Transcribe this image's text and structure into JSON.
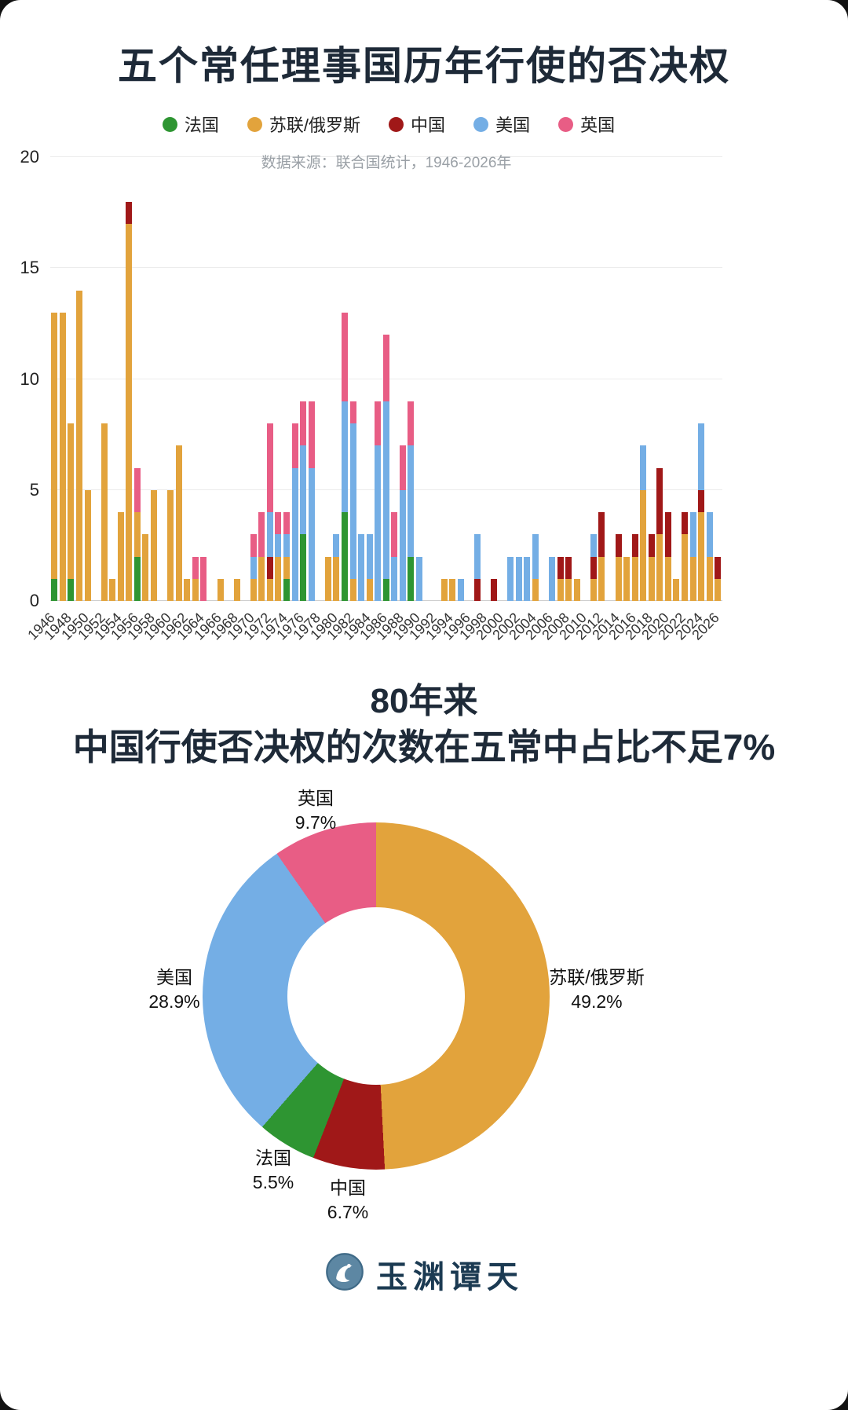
{
  "header": {
    "title": "五个常任理事国历年行使的否决权",
    "source_note": "数据来源：联合国统计，1946-2026年"
  },
  "section2": {
    "line1": "80年来",
    "line2": "中国行使否决权的次数在五常中占比不足7%"
  },
  "logo": {
    "text": "玉渊谭天"
  },
  "colors": {
    "france": "#2E9532",
    "ussr_russia": "#E2A33C",
    "china": "#A01818",
    "usa": "#74AEE5",
    "uk": "#E85D85",
    "title": "#1E2A38"
  },
  "chart_data": [
    {
      "type": "bar",
      "stacked": true,
      "title": "五个常任理事国历年行使的否决权",
      "source_note": "数据来源：联合国统计，1946-2026年",
      "x_start": 1946,
      "x_end": 2026,
      "ylim": [
        0,
        20
      ],
      "y_ticks": [
        0,
        5,
        10,
        15,
        20
      ],
      "x_ticks": [
        "1946",
        "1948",
        "1950",
        "1952",
        "1954",
        "1956",
        "1958",
        "1960",
        "1962",
        "1964",
        "1966",
        "1968",
        "1970",
        "1972",
        "1974",
        "1976",
        "1978",
        "1980",
        "1982",
        "1984",
        "1986",
        "1988",
        "1990",
        "1992",
        "1994",
        "1996",
        "1998",
        "2000",
        "2002",
        "2004",
        "2006",
        "2008",
        "2010",
        "2012",
        "2014",
        "2016",
        "2018",
        "2020",
        "2022",
        "2024",
        "2026"
      ],
      "legend_position": "top",
      "grid": true,
      "series": [
        {
          "name": "法国",
          "color": "#2E9532",
          "values": [
            1,
            0,
            1,
            0,
            0,
            0,
            0,
            0,
            0,
            0,
            2,
            0,
            0,
            0,
            0,
            0,
            0,
            0,
            0,
            0,
            0,
            0,
            0,
            0,
            0,
            0,
            0,
            0,
            1,
            0,
            3,
            0,
            0,
            0,
            0,
            4,
            0,
            0,
            0,
            0,
            1,
            0,
            0,
            2,
            0,
            0,
            0,
            0,
            0,
            0,
            0,
            0,
            0,
            0,
            0,
            0,
            0,
            0,
            0,
            0,
            0,
            0,
            0,
            0,
            0,
            0,
            0,
            0,
            0,
            0,
            0,
            0,
            0,
            0,
            0,
            0,
            0,
            0,
            0,
            0,
            0
          ]
        },
        {
          "name": "苏联/俄罗斯",
          "color": "#E2A33C",
          "values": [
            12,
            13,
            7,
            14,
            5,
            0,
            8,
            1,
            4,
            17,
            2,
            3,
            5,
            0,
            5,
            7,
            1,
            1,
            0,
            0,
            1,
            0,
            1,
            0,
            1,
            2,
            1,
            2,
            1,
            0,
            0,
            0,
            0,
            2,
            2,
            0,
            1,
            0,
            1,
            0,
            0,
            0,
            0,
            0,
            0,
            0,
            0,
            1,
            1,
            0,
            0,
            0,
            0,
            0,
            0,
            0,
            0,
            0,
            1,
            0,
            0,
            1,
            1,
            1,
            0,
            1,
            2,
            0,
            2,
            2,
            2,
            5,
            2,
            3,
            2,
            1,
            3,
            2,
            4,
            2,
            1
          ]
        },
        {
          "name": "中国",
          "color": "#A01818",
          "values": [
            0,
            0,
            0,
            0,
            0,
            0,
            0,
            0,
            0,
            1,
            0,
            0,
            0,
            0,
            0,
            0,
            0,
            0,
            0,
            0,
            0,
            0,
            0,
            0,
            0,
            0,
            1,
            0,
            0,
            0,
            0,
            0,
            0,
            0,
            0,
            0,
            0,
            0,
            0,
            0,
            0,
            0,
            0,
            0,
            0,
            0,
            0,
            0,
            0,
            0,
            0,
            1,
            0,
            1,
            0,
            0,
            0,
            0,
            0,
            0,
            0,
            1,
            1,
            0,
            0,
            1,
            2,
            0,
            1,
            0,
            1,
            0,
            1,
            3,
            2,
            0,
            1,
            0,
            1,
            0,
            1
          ]
        },
        {
          "name": "美国",
          "color": "#74AEE5",
          "values": [
            0,
            0,
            0,
            0,
            0,
            0,
            0,
            0,
            0,
            0,
            0,
            0,
            0,
            0,
            0,
            0,
            0,
            0,
            0,
            0,
            0,
            0,
            0,
            0,
            1,
            0,
            2,
            1,
            1,
            6,
            4,
            6,
            0,
            0,
            1,
            5,
            7,
            3,
            2,
            7,
            8,
            2,
            5,
            5,
            2,
            0,
            0,
            0,
            0,
            1,
            0,
            2,
            0,
            0,
            0,
            2,
            2,
            2,
            2,
            0,
            2,
            0,
            0,
            0,
            0,
            1,
            0,
            0,
            0,
            0,
            0,
            2,
            0,
            0,
            0,
            0,
            0,
            2,
            3,
            2,
            0
          ]
        },
        {
          "name": "英国",
          "color": "#E85D85",
          "values": [
            0,
            0,
            0,
            0,
            0,
            0,
            0,
            0,
            0,
            0,
            2,
            0,
            0,
            0,
            0,
            0,
            0,
            1,
            2,
            0,
            0,
            0,
            0,
            0,
            1,
            2,
            4,
            1,
            1,
            2,
            2,
            3,
            0,
            0,
            0,
            4,
            1,
            0,
            0,
            2,
            3,
            2,
            2,
            2,
            0,
            0,
            0,
            0,
            0,
            0,
            0,
            0,
            0,
            0,
            0,
            0,
            0,
            0,
            0,
            0,
            0,
            0,
            0,
            0,
            0,
            0,
            0,
            0,
            0,
            0,
            0,
            0,
            0,
            0,
            0,
            0,
            0,
            0,
            0,
            0,
            0
          ]
        }
      ]
    },
    {
      "type": "pie",
      "donut": true,
      "title": "80年来 中国行使否决权的次数在五常中占比不足7%",
      "slices": [
        {
          "label": "苏联/俄罗斯",
          "value": 49.2,
          "value_label": "49.2%",
          "color": "#E2A33C"
        },
        {
          "label": "中国",
          "value": 6.7,
          "value_label": "6.7%",
          "color": "#A01818"
        },
        {
          "label": "法国",
          "value": 5.5,
          "value_label": "5.5%",
          "color": "#2E9532"
        },
        {
          "label": "美国",
          "value": 28.9,
          "value_label": "28.9%",
          "color": "#74AEE5"
        },
        {
          "label": "英国",
          "value": 9.7,
          "value_label": "9.7%",
          "color": "#E85D85"
        }
      ]
    }
  ]
}
